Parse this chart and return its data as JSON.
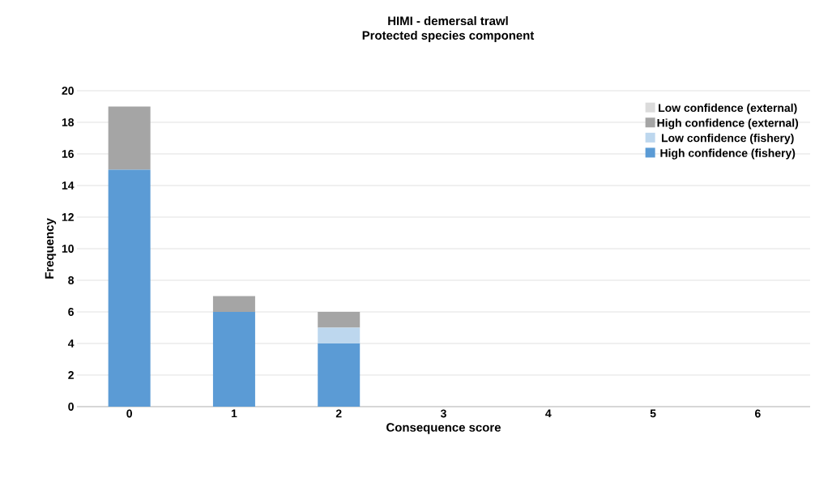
{
  "chart_data": {
    "type": "bar",
    "title": "HIMI - demersal trawl",
    "subtitle": "Protected species component",
    "xlabel": "Consequence score",
    "ylabel": "Frequency",
    "categories": [
      "0",
      "1",
      "2",
      "3",
      "4",
      "5",
      "6"
    ],
    "stacked": true,
    "series": [
      {
        "name": "High confidence (fishery)",
        "color": "#5b9bd5",
        "values": [
          15,
          6,
          4,
          0,
          0,
          0,
          0
        ]
      },
      {
        "name": "Low confidence (fishery)",
        "color": "#bdd7ee",
        "values": [
          0,
          0,
          1,
          0,
          0,
          0,
          0
        ]
      },
      {
        "name": "High confidence (external)",
        "color": "#a5a5a5",
        "values": [
          4,
          1,
          1,
          0,
          0,
          0,
          0
        ]
      },
      {
        "name": "Low confidence (external)",
        "color": "#dbdbdb",
        "values": [
          0,
          0,
          0,
          0,
          0,
          0,
          0
        ]
      }
    ],
    "ylim": [
      0,
      20
    ],
    "yticks": [
      0,
      2,
      4,
      6,
      8,
      10,
      12,
      14,
      16,
      18,
      20
    ],
    "grid": "y",
    "legend": "top right"
  }
}
